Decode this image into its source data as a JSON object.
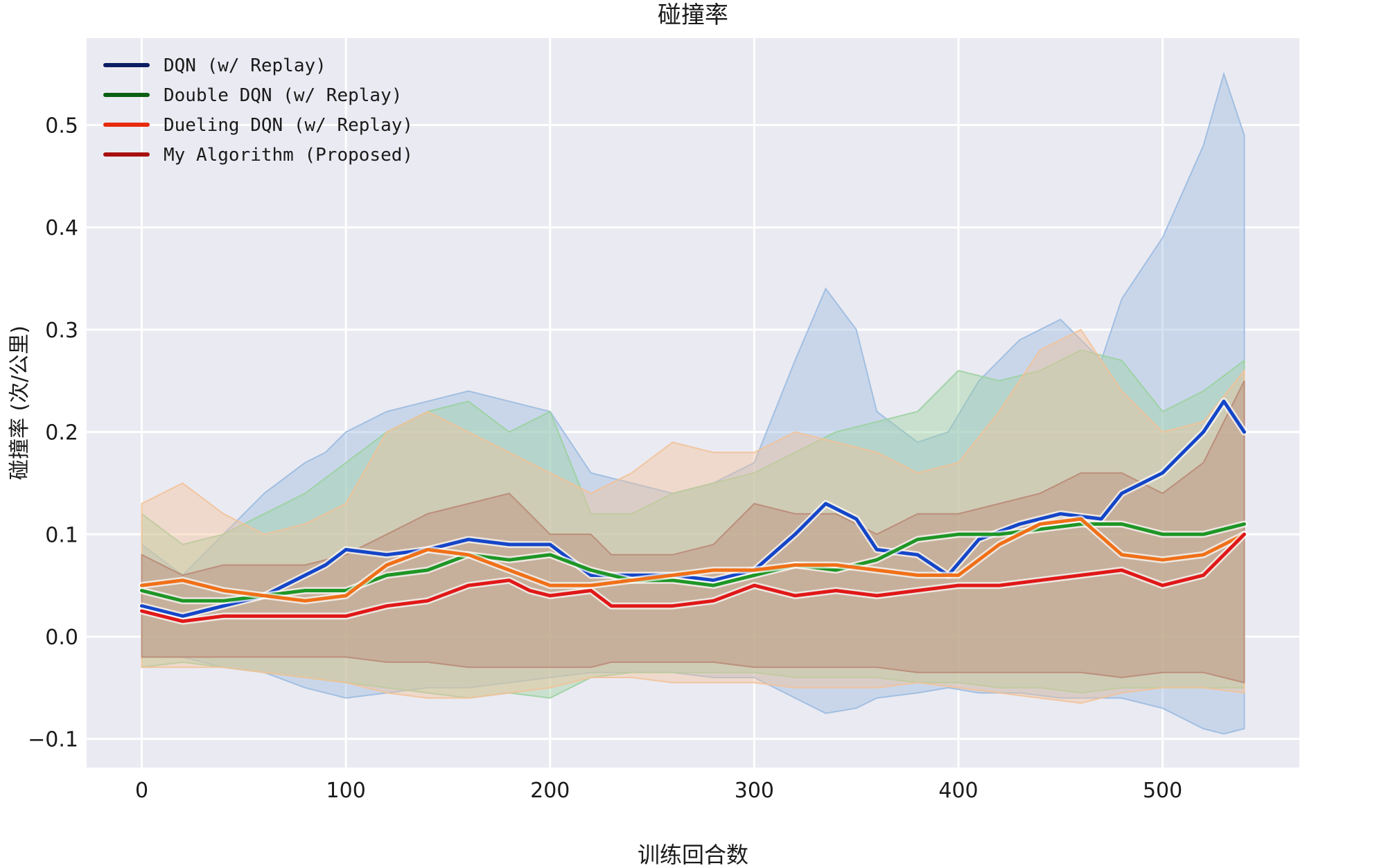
{
  "chart_data": {
    "type": "line",
    "title": "碰撞率",
    "xlabel": "训练回合数",
    "ylabel": "碰撞率 (次/公里)",
    "xlim": [
      -27,
      567
    ],
    "ylim": [
      -0.128,
      0.585
    ],
    "xticks": [
      0,
      100,
      200,
      300,
      400,
      500
    ],
    "yticks": [
      -0.1,
      0.0,
      0.1,
      0.2,
      0.3,
      0.4,
      0.5
    ],
    "xtick_labels": [
      "0",
      "100",
      "200",
      "300",
      "400",
      "500"
    ],
    "ytick_labels": [
      "−0.1",
      "0.0",
      "0.1",
      "0.2",
      "0.3",
      "0.4",
      "0.5"
    ],
    "grid": true,
    "legend_position": "top-left",
    "background_color": "#eaeaf2",
    "series": [
      {
        "name": "DQN (w/ Replay)",
        "legend_color": "#0a1d63",
        "line_color": "#1446c8",
        "band_color": "#9bbbe0",
        "x": [
          0,
          20,
          40,
          60,
          80,
          90,
          100,
          120,
          140,
          160,
          180,
          200,
          220,
          240,
          260,
          280,
          300,
          320,
          335,
          350,
          360,
          380,
          395,
          410,
          430,
          450,
          470,
          480,
          500,
          520,
          530,
          540
        ],
        "y": [
          0.03,
          0.02,
          0.03,
          0.04,
          0.06,
          0.07,
          0.085,
          0.08,
          0.085,
          0.095,
          0.09,
          0.09,
          0.06,
          0.06,
          0.06,
          0.055,
          0.065,
          0.1,
          0.13,
          0.115,
          0.085,
          0.08,
          0.06,
          0.095,
          0.11,
          0.12,
          0.115,
          0.14,
          0.16,
          0.2,
          0.23,
          0.2
        ],
        "upper": [
          0.09,
          0.06,
          0.1,
          0.14,
          0.17,
          0.18,
          0.2,
          0.22,
          0.23,
          0.24,
          0.23,
          0.22,
          0.16,
          0.15,
          0.14,
          0.15,
          0.17,
          0.27,
          0.34,
          0.3,
          0.22,
          0.19,
          0.2,
          0.25,
          0.29,
          0.31,
          0.27,
          0.33,
          0.39,
          0.48,
          0.55,
          0.49
        ],
        "lower": [
          -0.02,
          -0.02,
          -0.03,
          -0.035,
          -0.05,
          -0.055,
          -0.06,
          -0.055,
          -0.05,
          -0.05,
          -0.045,
          -0.04,
          -0.035,
          -0.035,
          -0.035,
          -0.04,
          -0.04,
          -0.06,
          -0.075,
          -0.07,
          -0.06,
          -0.055,
          -0.05,
          -0.055,
          -0.055,
          -0.06,
          -0.06,
          -0.06,
          -0.07,
          -0.09,
          -0.095,
          -0.09
        ]
      },
      {
        "name": "Double DQN (w/ Replay)",
        "legend_color": "#0b5e12",
        "line_color": "#1e9626",
        "band_color": "#9bd2a0",
        "x": [
          0,
          20,
          40,
          60,
          80,
          100,
          120,
          140,
          160,
          180,
          200,
          220,
          240,
          260,
          280,
          300,
          320,
          340,
          360,
          380,
          400,
          420,
          440,
          460,
          480,
          500,
          520,
          540
        ],
        "y": [
          0.045,
          0.035,
          0.035,
          0.04,
          0.045,
          0.045,
          0.06,
          0.065,
          0.08,
          0.075,
          0.08,
          0.065,
          0.055,
          0.055,
          0.05,
          0.06,
          0.07,
          0.065,
          0.075,
          0.095,
          0.1,
          0.1,
          0.105,
          0.11,
          0.11,
          0.1,
          0.1,
          0.11
        ],
        "upper": [
          0.12,
          0.09,
          0.1,
          0.12,
          0.14,
          0.17,
          0.2,
          0.22,
          0.23,
          0.2,
          0.22,
          0.12,
          0.12,
          0.14,
          0.15,
          0.16,
          0.18,
          0.2,
          0.21,
          0.22,
          0.26,
          0.25,
          0.26,
          0.28,
          0.27,
          0.22,
          0.24,
          0.27
        ],
        "lower": [
          -0.03,
          -0.025,
          -0.03,
          -0.035,
          -0.04,
          -0.045,
          -0.05,
          -0.055,
          -0.06,
          -0.055,
          -0.06,
          -0.04,
          -0.035,
          -0.035,
          -0.035,
          -0.035,
          -0.04,
          -0.04,
          -0.04,
          -0.045,
          -0.045,
          -0.05,
          -0.05,
          -0.055,
          -0.05,
          -0.05,
          -0.05,
          -0.05
        ]
      },
      {
        "name": "Dueling DQN (w/ Replay)",
        "legend_color": "#e82a0e",
        "line_color": "#f07018",
        "band_color": "#f2c298",
        "x": [
          0,
          20,
          40,
          60,
          80,
          100,
          120,
          140,
          160,
          180,
          200,
          220,
          240,
          260,
          280,
          300,
          320,
          340,
          360,
          380,
          400,
          420,
          440,
          460,
          480,
          500,
          520,
          540
        ],
        "y": [
          0.05,
          0.055,
          0.045,
          0.04,
          0.035,
          0.04,
          0.07,
          0.085,
          0.08,
          0.065,
          0.05,
          0.05,
          0.055,
          0.06,
          0.065,
          0.065,
          0.07,
          0.07,
          0.065,
          0.06,
          0.06,
          0.09,
          0.11,
          0.115,
          0.08,
          0.075,
          0.08,
          0.1
        ],
        "upper": [
          0.13,
          0.15,
          0.12,
          0.1,
          0.11,
          0.13,
          0.2,
          0.22,
          0.2,
          0.18,
          0.16,
          0.14,
          0.16,
          0.19,
          0.18,
          0.18,
          0.2,
          0.19,
          0.18,
          0.16,
          0.17,
          0.22,
          0.28,
          0.3,
          0.24,
          0.2,
          0.21,
          0.26
        ],
        "lower": [
          -0.03,
          -0.03,
          -0.03,
          -0.035,
          -0.04,
          -0.045,
          -0.055,
          -0.06,
          -0.06,
          -0.055,
          -0.05,
          -0.04,
          -0.04,
          -0.045,
          -0.045,
          -0.045,
          -0.05,
          -0.05,
          -0.05,
          -0.045,
          -0.05,
          -0.055,
          -0.06,
          -0.065,
          -0.055,
          -0.05,
          -0.05,
          -0.055
        ]
      },
      {
        "name": "My Algorithm (Proposed)",
        "legend_color": "#a81010",
        "line_color": "#e01818",
        "band_color": "#b98a76",
        "x": [
          0,
          20,
          40,
          60,
          80,
          100,
          120,
          140,
          160,
          180,
          190,
          200,
          220,
          230,
          240,
          260,
          280,
          300,
          320,
          340,
          360,
          380,
          400,
          420,
          440,
          460,
          480,
          500,
          520,
          540
        ],
        "y": [
          0.025,
          0.015,
          0.02,
          0.02,
          0.02,
          0.02,
          0.03,
          0.035,
          0.05,
          0.055,
          0.045,
          0.04,
          0.045,
          0.03,
          0.03,
          0.03,
          0.035,
          0.05,
          0.04,
          0.045,
          0.04,
          0.045,
          0.05,
          0.05,
          0.055,
          0.06,
          0.065,
          0.05,
          0.06,
          0.1
        ],
        "upper": [
          0.08,
          0.06,
          0.07,
          0.07,
          0.07,
          0.08,
          0.1,
          0.12,
          0.13,
          0.14,
          0.12,
          0.1,
          0.1,
          0.08,
          0.08,
          0.08,
          0.09,
          0.13,
          0.12,
          0.12,
          0.1,
          0.12,
          0.12,
          0.13,
          0.14,
          0.16,
          0.16,
          0.14,
          0.17,
          0.25
        ],
        "lower": [
          -0.02,
          -0.02,
          -0.02,
          -0.02,
          -0.02,
          -0.02,
          -0.025,
          -0.025,
          -0.03,
          -0.03,
          -0.03,
          -0.03,
          -0.03,
          -0.025,
          -0.025,
          -0.025,
          -0.025,
          -0.03,
          -0.03,
          -0.03,
          -0.03,
          -0.035,
          -0.035,
          -0.035,
          -0.035,
          -0.035,
          -0.04,
          -0.035,
          -0.035,
          -0.045
        ]
      }
    ]
  }
}
